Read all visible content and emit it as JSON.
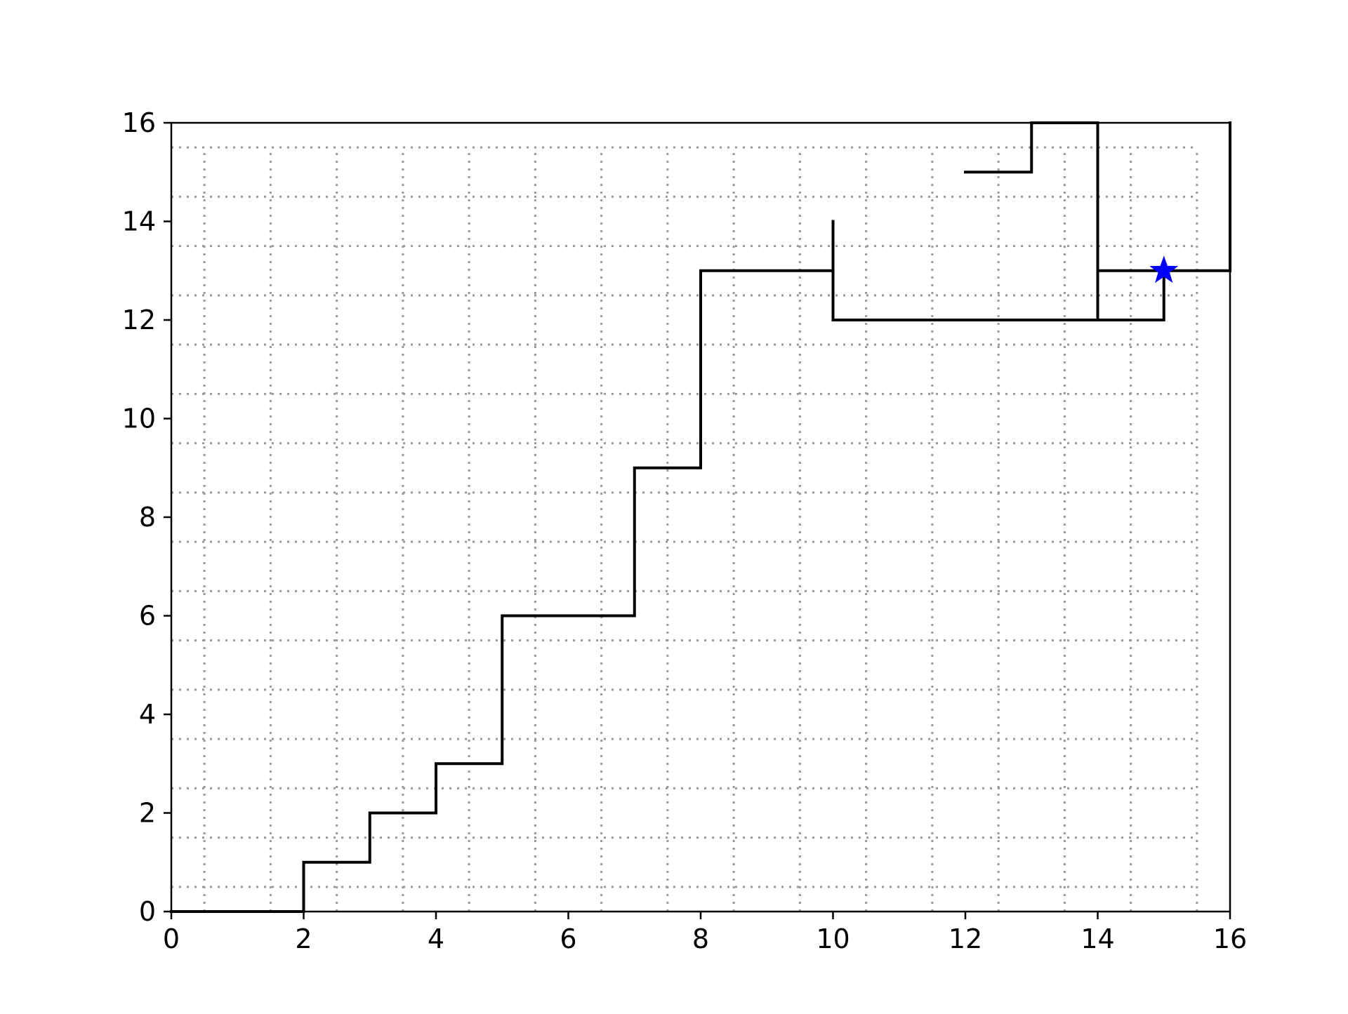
{
  "chart_data": {
    "type": "line",
    "title": "",
    "xlabel": "",
    "ylabel": "",
    "xlim": [
      0,
      16
    ],
    "ylim": [
      0,
      16
    ],
    "x_ticks": [
      0,
      2,
      4,
      6,
      8,
      10,
      12,
      14,
      16
    ],
    "y_ticks": [
      0,
      2,
      4,
      6,
      8,
      10,
      12,
      14,
      16
    ],
    "x_tick_labels": [
      "0",
      "2",
      "4",
      "6",
      "8",
      "10",
      "12",
      "14",
      "16"
    ],
    "y_tick_labels": [
      "0",
      "2",
      "4",
      "6",
      "8",
      "10",
      "12",
      "14",
      "16"
    ],
    "grid": true,
    "grid_style": "dotted",
    "grid_color": "#999999",
    "grid_lines": {
      "x": [
        0.5,
        1.5,
        2.5,
        3.5,
        4.5,
        5.5,
        6.5,
        7.5,
        8.5,
        9.5,
        10.5,
        11.5,
        12.5,
        13.5,
        14.5,
        15.5
      ],
      "y": [
        0.5,
        1.5,
        2.5,
        3.5,
        4.5,
        5.5,
        6.5,
        7.5,
        8.5,
        9.5,
        10.5,
        11.5,
        12.5,
        13.5,
        14.5,
        15.5
      ]
    },
    "line_color": "#000000",
    "segments": [
      {
        "x": [
          0,
          2,
          2,
          3,
          3,
          4,
          4,
          5,
          5,
          7,
          7,
          8,
          8,
          10,
          10,
          14,
          14,
          13,
          13,
          12
        ],
        "y": [
          0,
          0,
          1,
          1,
          2,
          2,
          3,
          3,
          6,
          6,
          9,
          9,
          13,
          13,
          12,
          12,
          16,
          16,
          15,
          15
        ]
      },
      {
        "x": [
          10,
          10
        ],
        "y": [
          13,
          14
        ]
      },
      {
        "x": [
          14,
          15,
          15
        ],
        "y": [
          12,
          12,
          13
        ]
      },
      {
        "x": [
          14,
          16
        ],
        "y": [
          13,
          13
        ]
      },
      {
        "x": [
          16,
          16
        ],
        "y": [
          13,
          16
        ]
      }
    ],
    "marker": {
      "x": 15,
      "y": 13,
      "shape": "star",
      "color": "#0000ff"
    }
  }
}
